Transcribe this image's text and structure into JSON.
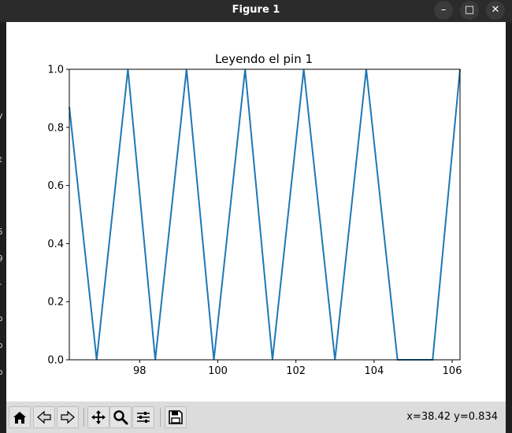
{
  "window": {
    "title": "Figure 1",
    "minimize_icon": "minimize-icon",
    "maximize_icon": "maximize-icon",
    "close_icon": "close-icon"
  },
  "background_fragments": [
    "y",
    "t",
    "5",
    "9",
    "-",
    "o",
    "o",
    "o"
  ],
  "toolbar": {
    "buttons": [
      {
        "name": "home-button",
        "icon": "home-icon"
      },
      {
        "name": "back-button",
        "icon": "back-arrow-icon"
      },
      {
        "name": "forward-button",
        "icon": "forward-arrow-icon"
      },
      {
        "name": "pan-button",
        "icon": "move-icon"
      },
      {
        "name": "zoom-button",
        "icon": "magnifier-icon"
      },
      {
        "name": "configure-subplots-button",
        "icon": "sliders-icon"
      },
      {
        "name": "save-button",
        "icon": "floppy-disk-icon"
      }
    ],
    "coordinates": "x=38.42 y=0.834"
  },
  "chart_data": {
    "type": "line",
    "title": "Leyendo el pin 1",
    "xlabel": "",
    "ylabel": "",
    "xlim": [
      96.2,
      106.2
    ],
    "ylim": [
      0.0,
      1.0
    ],
    "xticks": [
      98,
      100,
      102,
      104,
      106
    ],
    "yticks": [
      0.0,
      0.2,
      0.4,
      0.6,
      0.8,
      1.0
    ],
    "xtick_labels": [
      "98",
      "100",
      "102",
      "104",
      "106"
    ],
    "ytick_labels": [
      "0.0",
      "0.2",
      "0.4",
      "0.6",
      "0.8",
      "1.0"
    ],
    "grid": false,
    "legend": "none",
    "series": [
      {
        "color": "#1f77b4",
        "x": [
          96.2,
          96.9,
          97.7,
          98.4,
          99.2,
          99.9,
          100.7,
          101.4,
          102.2,
          103.0,
          103.8,
          104.6,
          105.5,
          106.2
        ],
        "y": [
          0.87,
          0.0,
          1.0,
          0.0,
          1.0,
          0.0,
          1.0,
          0.0,
          1.0,
          0.0,
          1.0,
          0.0,
          0.0,
          1.0
        ]
      }
    ]
  }
}
